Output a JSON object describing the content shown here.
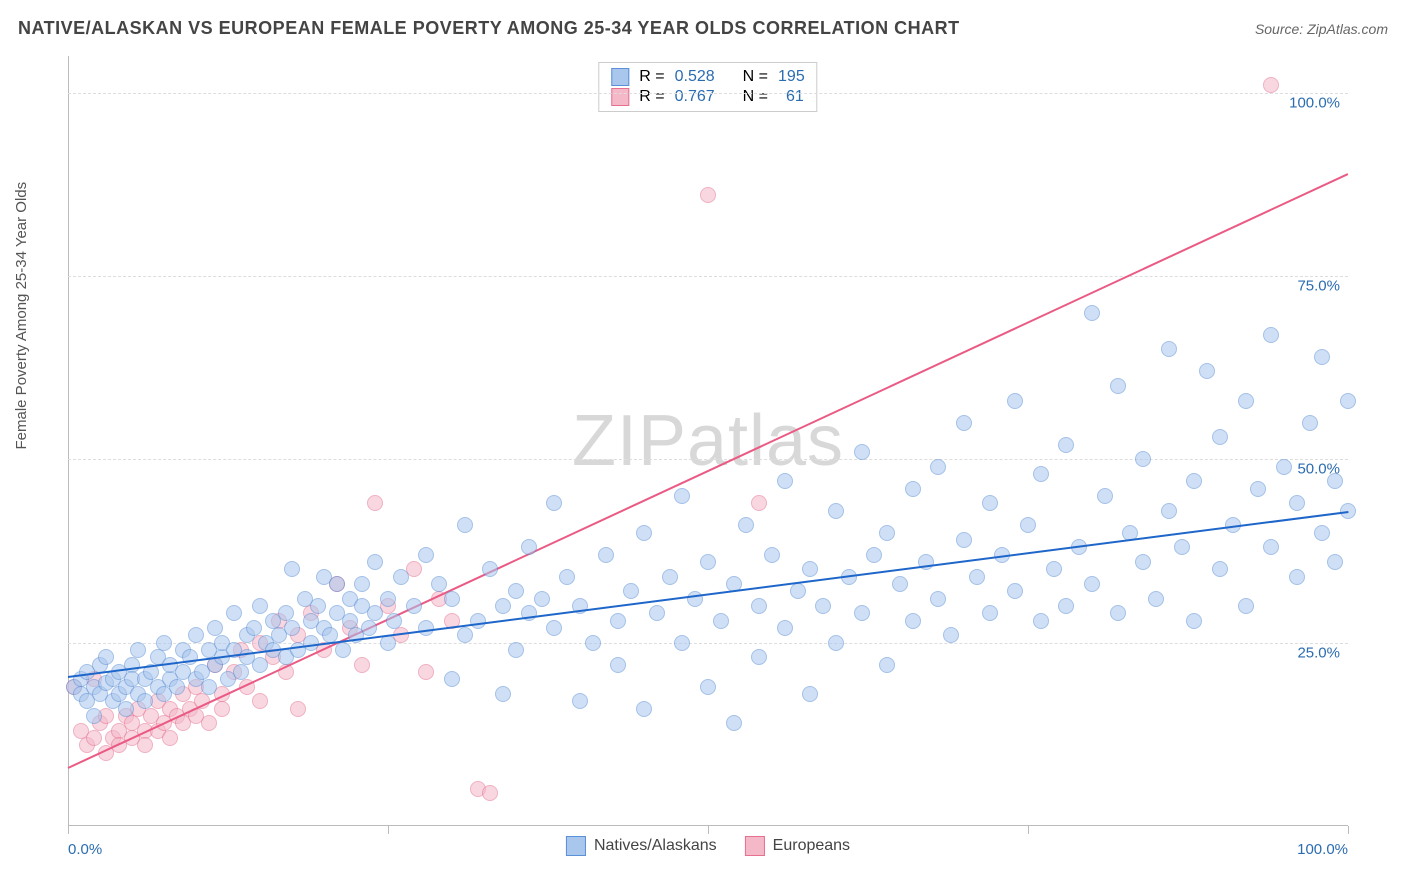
{
  "title": "NATIVE/ALASKAN VS EUROPEAN FEMALE POVERTY AMONG 25-34 YEAR OLDS CORRELATION CHART",
  "source_label": "Source: ZipAtlas.com",
  "watermark": "ZIPatlas",
  "y_axis_label": "Female Poverty Among 25-34 Year Olds",
  "chart": {
    "type": "scatter",
    "xlim": [
      0,
      100
    ],
    "ylim": [
      0,
      105
    ],
    "x_ticks": [
      0,
      25,
      50,
      75,
      100
    ],
    "x_tick_labels": {
      "0": "0.0%",
      "100": "100.0%"
    },
    "y_ticks": [
      25,
      50,
      75,
      100
    ],
    "y_tick_labels": {
      "25": "25.0%",
      "50": "50.0%",
      "75": "75.0%",
      "100": "100.0%"
    },
    "grid_color": "#dddddd",
    "background_color": "#ffffff",
    "axis_color": "#bbbbbb",
    "x_label_color": "#2b6cb0",
    "y_label_color": "#2b6cb0",
    "marker_radius": 8,
    "marker_opacity": 0.55,
    "series": {
      "natives": {
        "label": "Natives/Alaskans",
        "fill": "#a9c6ed",
        "stroke": "#5b8fd6",
        "r_value": "0.528",
        "n_value": "195",
        "trend": {
          "x1": 0,
          "y1": 20.5,
          "x2": 100,
          "y2": 43,
          "color": "#1e66c9",
          "width": 2
        },
        "points": [
          [
            0.5,
            19
          ],
          [
            1,
            18
          ],
          [
            1,
            20
          ],
          [
            1.5,
            17
          ],
          [
            1.5,
            21
          ],
          [
            2,
            19
          ],
          [
            2,
            15
          ],
          [
            2.5,
            22
          ],
          [
            2.5,
            18
          ],
          [
            3,
            19.5
          ],
          [
            3,
            23
          ],
          [
            3.5,
            17
          ],
          [
            3.5,
            20
          ],
          [
            4,
            21
          ],
          [
            4,
            18
          ],
          [
            4.5,
            19
          ],
          [
            4.5,
            16
          ],
          [
            5,
            22
          ],
          [
            5,
            20
          ],
          [
            5.5,
            18
          ],
          [
            5.5,
            24
          ],
          [
            6,
            20
          ],
          [
            6,
            17
          ],
          [
            6.5,
            21
          ],
          [
            7,
            23
          ],
          [
            7,
            19
          ],
          [
            7.5,
            18
          ],
          [
            7.5,
            25
          ],
          [
            8,
            20
          ],
          [
            8,
            22
          ],
          [
            8.5,
            19
          ],
          [
            9,
            24
          ],
          [
            9,
            21
          ],
          [
            9.5,
            23
          ],
          [
            10,
            20
          ],
          [
            10,
            26
          ],
          [
            10.5,
            21
          ],
          [
            11,
            24
          ],
          [
            11,
            19
          ],
          [
            11.5,
            27
          ],
          [
            11.5,
            22
          ],
          [
            12,
            23
          ],
          [
            12,
            25
          ],
          [
            12.5,
            20
          ],
          [
            13,
            29
          ],
          [
            13,
            24
          ],
          [
            13.5,
            21
          ],
          [
            14,
            26
          ],
          [
            14,
            23
          ],
          [
            14.5,
            27
          ],
          [
            15,
            22
          ],
          [
            15,
            30
          ],
          [
            15.5,
            25
          ],
          [
            16,
            24
          ],
          [
            16,
            28
          ],
          [
            16.5,
            26
          ],
          [
            17,
            23
          ],
          [
            17,
            29
          ],
          [
            17.5,
            27
          ],
          [
            17.5,
            35
          ],
          [
            18,
            24
          ],
          [
            18.5,
            31
          ],
          [
            19,
            28
          ],
          [
            19,
            25
          ],
          [
            19.5,
            30
          ],
          [
            20,
            27
          ],
          [
            20,
            34
          ],
          [
            20.5,
            26
          ],
          [
            21,
            33
          ],
          [
            21,
            29
          ],
          [
            21.5,
            24
          ],
          [
            22,
            31
          ],
          [
            22,
            28
          ],
          [
            22.5,
            26
          ],
          [
            23,
            33
          ],
          [
            23,
            30
          ],
          [
            23.5,
            27
          ],
          [
            24,
            36
          ],
          [
            24,
            29
          ],
          [
            25,
            31
          ],
          [
            25,
            25
          ],
          [
            25.5,
            28
          ],
          [
            26,
            34
          ],
          [
            27,
            30
          ],
          [
            28,
            27
          ],
          [
            28,
            37
          ],
          [
            29,
            33
          ],
          [
            30,
            20
          ],
          [
            30,
            31
          ],
          [
            31,
            26
          ],
          [
            31,
            41
          ],
          [
            32,
            28
          ],
          [
            33,
            35
          ],
          [
            34,
            30
          ],
          [
            34,
            18
          ],
          [
            35,
            32
          ],
          [
            35,
            24
          ],
          [
            36,
            38
          ],
          [
            36,
            29
          ],
          [
            37,
            31
          ],
          [
            38,
            27
          ],
          [
            38,
            44
          ],
          [
            39,
            34
          ],
          [
            40,
            17
          ],
          [
            40,
            30
          ],
          [
            41,
            25
          ],
          [
            42,
            37
          ],
          [
            43,
            28
          ],
          [
            43,
            22
          ],
          [
            44,
            32
          ],
          [
            45,
            40
          ],
          [
            45,
            16
          ],
          [
            46,
            29
          ],
          [
            47,
            34
          ],
          [
            48,
            25
          ],
          [
            48,
            45
          ],
          [
            49,
            31
          ],
          [
            50,
            19
          ],
          [
            50,
            36
          ],
          [
            51,
            28
          ],
          [
            52,
            33
          ],
          [
            52,
            14
          ],
          [
            53,
            41
          ],
          [
            54,
            30
          ],
          [
            54,
            23
          ],
          [
            55,
            37
          ],
          [
            56,
            27
          ],
          [
            56,
            47
          ],
          [
            57,
            32
          ],
          [
            58,
            35
          ],
          [
            58,
            18
          ],
          [
            59,
            30
          ],
          [
            60,
            43
          ],
          [
            60,
            25
          ],
          [
            61,
            34
          ],
          [
            62,
            29
          ],
          [
            62,
            51
          ],
          [
            63,
            37
          ],
          [
            64,
            22
          ],
          [
            64,
            40
          ],
          [
            65,
            33
          ],
          [
            66,
            28
          ],
          [
            66,
            46
          ],
          [
            67,
            36
          ],
          [
            68,
            31
          ],
          [
            68,
            49
          ],
          [
            69,
            26
          ],
          [
            70,
            39
          ],
          [
            70,
            55
          ],
          [
            71,
            34
          ],
          [
            72,
            29
          ],
          [
            72,
            44
          ],
          [
            73,
            37
          ],
          [
            74,
            32
          ],
          [
            74,
            58
          ],
          [
            75,
            41
          ],
          [
            76,
            28
          ],
          [
            76,
            48
          ],
          [
            77,
            35
          ],
          [
            78,
            30
          ],
          [
            78,
            52
          ],
          [
            79,
            38
          ],
          [
            80,
            70
          ],
          [
            80,
            33
          ],
          [
            81,
            45
          ],
          [
            82,
            29
          ],
          [
            82,
            60
          ],
          [
            83,
            40
          ],
          [
            84,
            36
          ],
          [
            84,
            50
          ],
          [
            85,
            31
          ],
          [
            86,
            65
          ],
          [
            86,
            43
          ],
          [
            87,
            38
          ],
          [
            88,
            47
          ],
          [
            88,
            28
          ],
          [
            89,
            62
          ],
          [
            90,
            35
          ],
          [
            90,
            53
          ],
          [
            91,
            41
          ],
          [
            92,
            30
          ],
          [
            92,
            58
          ],
          [
            93,
            46
          ],
          [
            94,
            38
          ],
          [
            94,
            67
          ],
          [
            95,
            49
          ],
          [
            96,
            34
          ],
          [
            96,
            44
          ],
          [
            97,
            55
          ],
          [
            98,
            40
          ],
          [
            98,
            64
          ],
          [
            99,
            47
          ],
          [
            99,
            36
          ],
          [
            100,
            58
          ],
          [
            100,
            43
          ]
        ]
      },
      "europeans": {
        "label": "Europeans",
        "fill": "#f4b8c9",
        "stroke": "#e5718f",
        "r_value": "0.767",
        "n_value": "61",
        "trend": {
          "x1": 0,
          "y1": 8,
          "x2": 100,
          "y2": 89,
          "color": "#ea5a84",
          "width": 2
        },
        "points": [
          [
            0.5,
            19
          ],
          [
            1,
            13
          ],
          [
            1.5,
            11
          ],
          [
            2,
            20
          ],
          [
            2,
            12
          ],
          [
            2.5,
            14
          ],
          [
            3,
            10
          ],
          [
            3,
            15
          ],
          [
            3.5,
            12
          ],
          [
            4,
            13
          ],
          [
            4,
            11
          ],
          [
            4.5,
            15
          ],
          [
            5,
            12
          ],
          [
            5,
            14
          ],
          [
            5.5,
            16
          ],
          [
            6,
            13
          ],
          [
            6,
            11
          ],
          [
            6.5,
            15
          ],
          [
            7,
            17
          ],
          [
            7,
            13
          ],
          [
            7.5,
            14
          ],
          [
            8,
            16
          ],
          [
            8,
            12
          ],
          [
            8.5,
            15
          ],
          [
            9,
            18
          ],
          [
            9,
            14
          ],
          [
            9.5,
            16
          ],
          [
            10,
            15
          ],
          [
            10,
            19
          ],
          [
            10.5,
            17
          ],
          [
            11,
            14
          ],
          [
            11.5,
            22
          ],
          [
            12,
            18
          ],
          [
            12,
            16
          ],
          [
            13,
            21
          ],
          [
            13.5,
            24
          ],
          [
            14,
            19
          ],
          [
            15,
            25
          ],
          [
            15,
            17
          ],
          [
            16,
            23
          ],
          [
            16.5,
            28
          ],
          [
            17,
            21
          ],
          [
            18,
            26
          ],
          [
            18,
            16
          ],
          [
            19,
            29
          ],
          [
            20,
            24
          ],
          [
            21,
            33
          ],
          [
            22,
            27
          ],
          [
            23,
            22
          ],
          [
            24,
            44
          ],
          [
            25,
            30
          ],
          [
            26,
            26
          ],
          [
            27,
            35
          ],
          [
            28,
            21
          ],
          [
            29,
            31
          ],
          [
            30,
            28
          ],
          [
            32,
            5
          ],
          [
            33,
            4.5
          ],
          [
            50,
            86
          ],
          [
            54,
            44
          ],
          [
            94,
            101
          ]
        ]
      }
    },
    "legend_r_label": "R =",
    "legend_n_label": "N =",
    "legend_value_color": "#2b6cb0"
  }
}
